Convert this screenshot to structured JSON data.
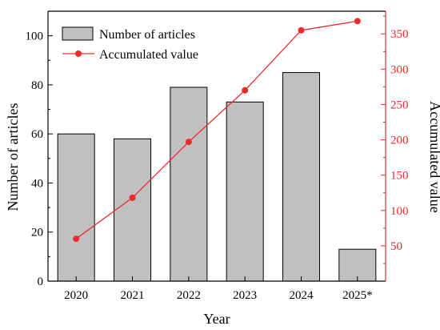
{
  "colors": {
    "bar_fill": "#c0c0c0",
    "bar_stroke": "#000000",
    "line": "#ee2a2a",
    "left_axis": "#000000",
    "right_axis": "#ee2a2a"
  },
  "chart_data": {
    "type": "bar",
    "title": "",
    "xlabel": "Year",
    "ylabel": "Number of articles",
    "y2label": "Accumulated value",
    "categories": [
      "2020",
      "2021",
      "2022",
      "2023",
      "2024",
      "2025*"
    ],
    "ylim": [
      0,
      110
    ],
    "y2lim": [
      0,
      382
    ],
    "yticks": [
      0,
      20,
      40,
      60,
      80,
      100
    ],
    "y2ticks": [
      50,
      100,
      150,
      200,
      250,
      300,
      350
    ],
    "grid": false,
    "legend_position": "top-left",
    "series": [
      {
        "name": "Number of articles",
        "kind": "bar",
        "axis": "left",
        "values": [
          60,
          58,
          79,
          73,
          85,
          13
        ]
      },
      {
        "name": "Accumulated value",
        "kind": "line",
        "axis": "right",
        "values": [
          60,
          118,
          197,
          270,
          355,
          368
        ]
      }
    ]
  }
}
